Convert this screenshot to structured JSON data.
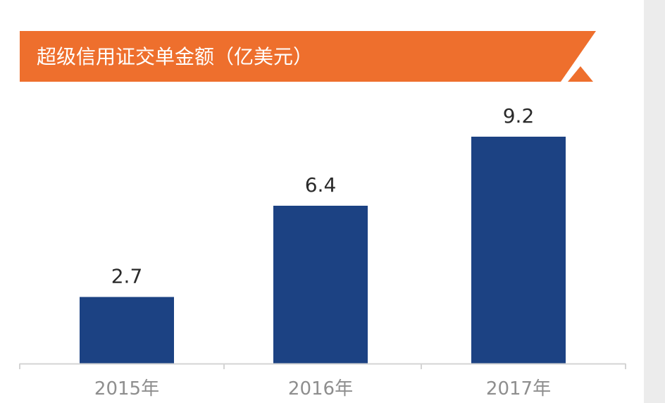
{
  "chart_data": {
    "type": "bar",
    "title": "超级信用证交单金额（亿美元）",
    "categories": [
      "2015年",
      "2016年",
      "2017年"
    ],
    "values": [
      2.7,
      6.4,
      9.2
    ],
    "value_labels": [
      "2.7",
      "6.4",
      "9.2"
    ],
    "ylim": [
      0,
      10
    ],
    "grid": false,
    "legend": "none",
    "colors": {
      "bar": "#1c4283",
      "banner": "#ee6f2d",
      "title_text": "#ffffff",
      "axis": "#d4d4d4",
      "tick_text": "#8e8e8e",
      "value_text": "#2a2a2a"
    }
  }
}
